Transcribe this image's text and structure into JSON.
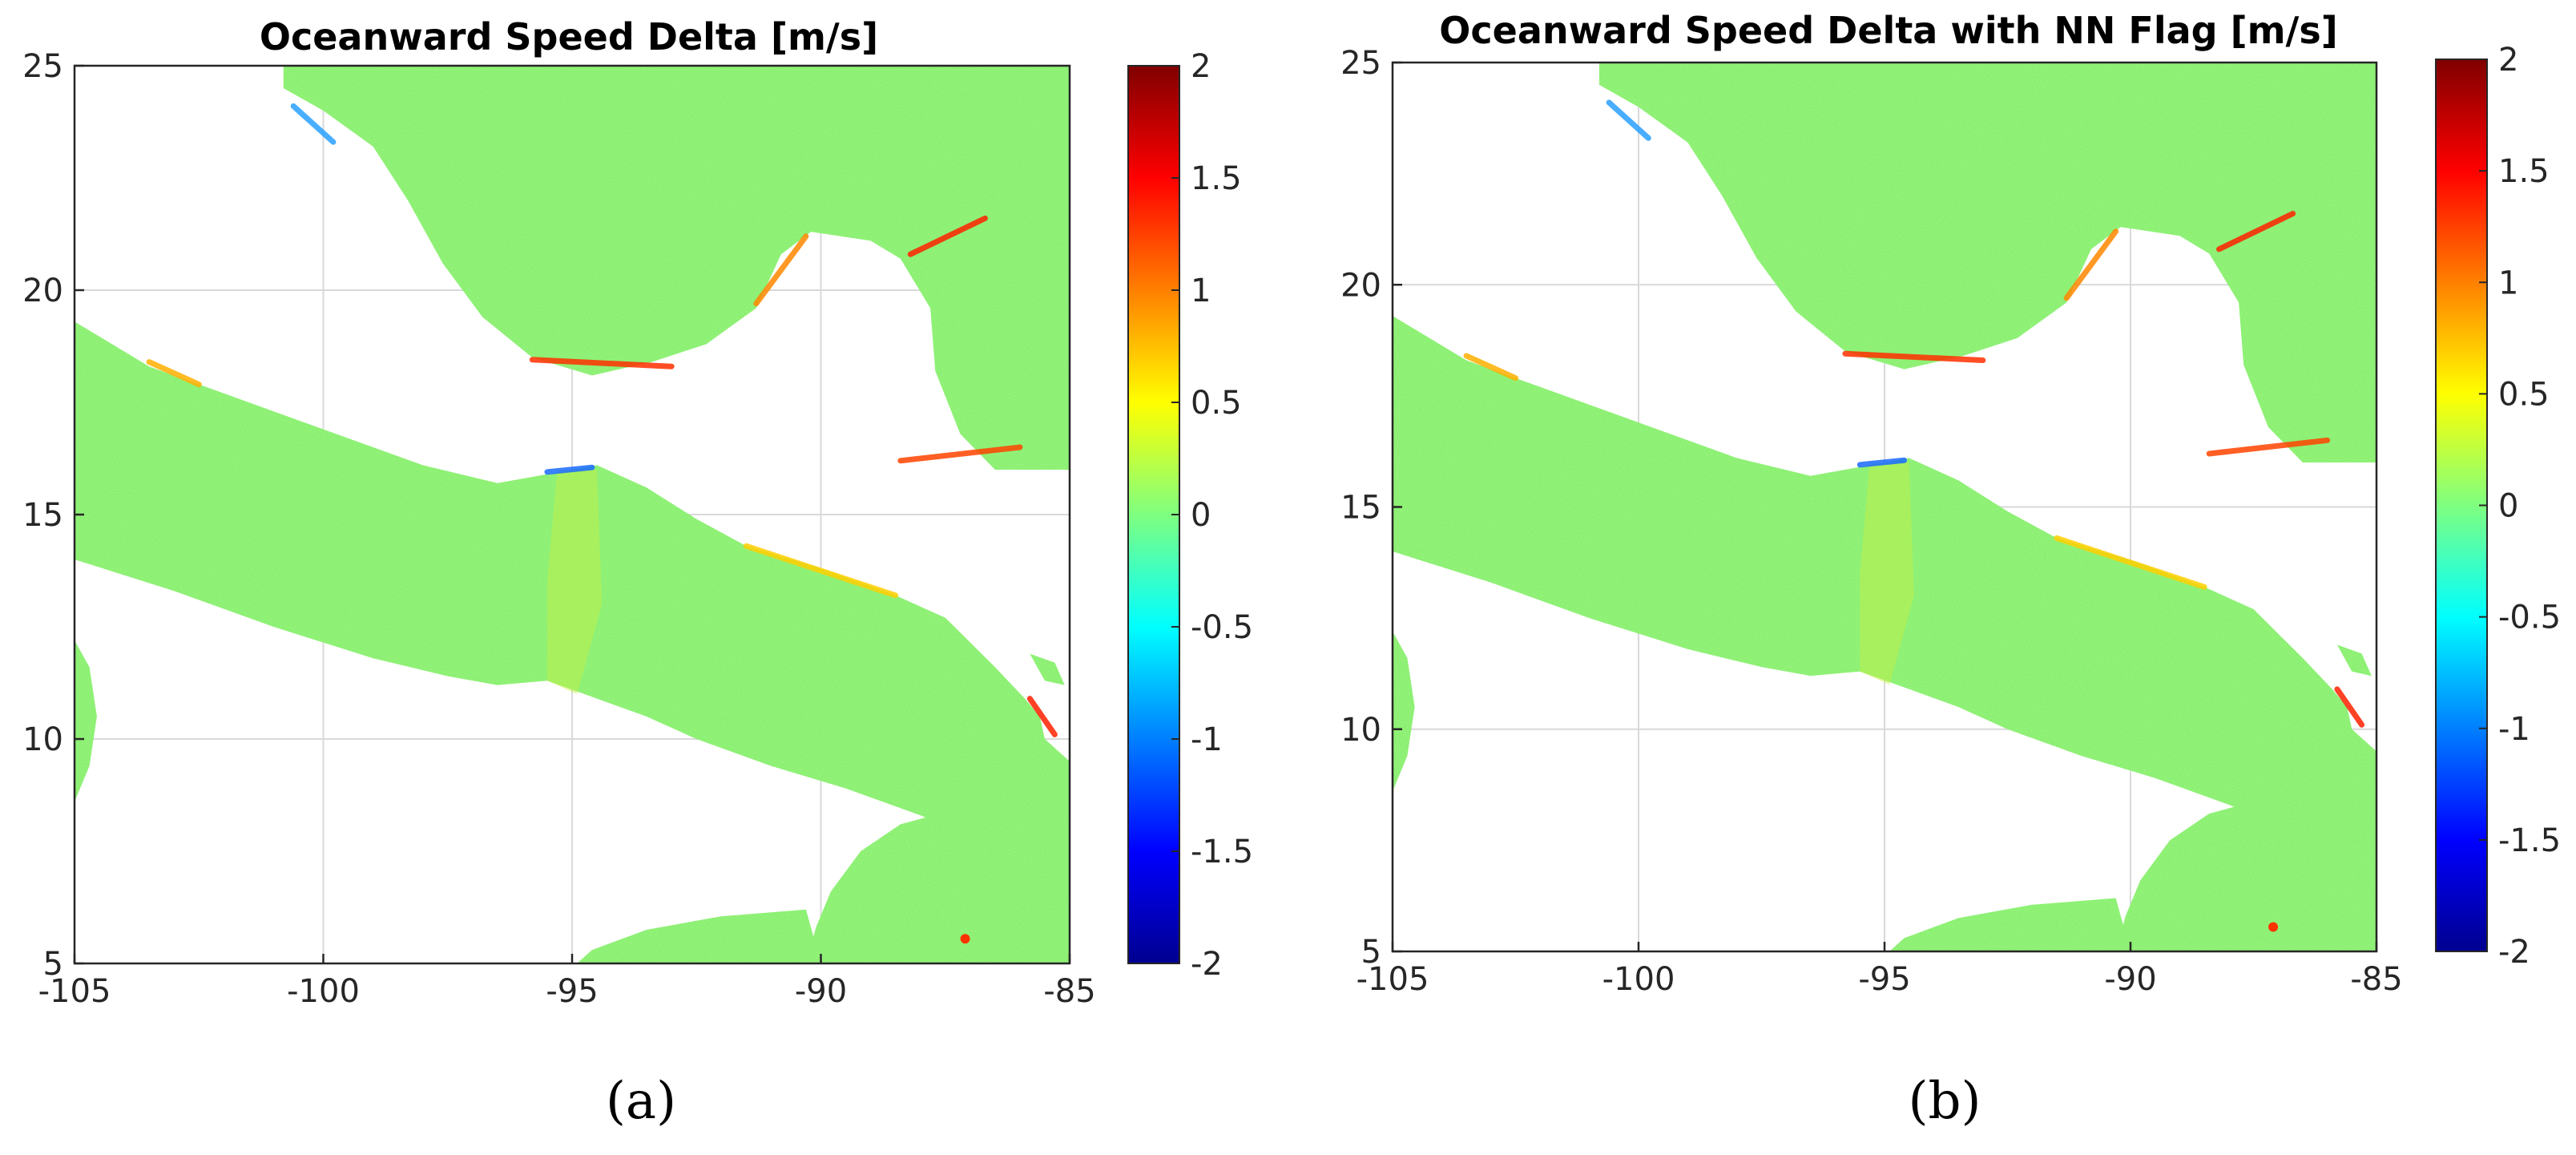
{
  "colors": {
    "land": "#ffffff",
    "ocean": "#86ef6f",
    "ocean_alt": "#a2f05d",
    "axis": "#262626",
    "grid": "#d9d9d9",
    "colormap": "jet"
  },
  "chart_data": [
    {
      "type": "heatmap",
      "title": "Oceanward Speed Delta [m/s]",
      "caption": "(a)",
      "xlabel": "",
      "ylabel": "",
      "xlim": [
        -105,
        -85
      ],
      "ylim": [
        5,
        25
      ],
      "x_ticks": [
        -105,
        -100,
        -95,
        -90,
        -85
      ],
      "x_tick_labels": [
        "-105",
        "-100",
        "-95",
        "-90",
        "-85"
      ],
      "y_ticks": [
        5,
        10,
        15,
        20,
        25
      ],
      "y_tick_labels": [
        "5",
        "10",
        "15",
        "20",
        "25"
      ],
      "grid": true,
      "colorbar": {
        "colormap": "jet",
        "clim": [
          -2,
          2
        ],
        "ticks": [
          2,
          1.5,
          1,
          0.5,
          0,
          -0.5,
          -1,
          -1.5,
          -2
        ],
        "tick_labels": [
          "2",
          "1.5",
          "1",
          "0.5",
          "0",
          "-0.5",
          "-1",
          "-1.5",
          "-2"
        ]
      },
      "typical_value": 0.05
    },
    {
      "type": "heatmap",
      "title": "Oceanward Speed Delta with NN Flag [m/s]",
      "caption": "(b)",
      "xlabel": "",
      "ylabel": "",
      "xlim": [
        -105,
        -85
      ],
      "ylim": [
        5,
        25
      ],
      "x_ticks": [
        -105,
        -100,
        -95,
        -90,
        -85
      ],
      "x_tick_labels": [
        "-105",
        "-100",
        "-95",
        "-90",
        "-85"
      ],
      "y_ticks": [
        5,
        10,
        15,
        20,
        25
      ],
      "y_tick_labels": [
        "5",
        "10",
        "15",
        "20",
        "25"
      ],
      "grid": true,
      "colorbar": {
        "colormap": "jet",
        "clim": [
          -2,
          2
        ],
        "ticks": [
          2,
          1.5,
          1,
          0.5,
          0,
          -0.5,
          -1,
          -1.5,
          -2
        ],
        "tick_labels": [
          "2",
          "1.5",
          "1",
          "0.5",
          "0",
          "-0.5",
          "-1",
          "-1.5",
          "-2"
        ]
      },
      "typical_value": 0.05
    }
  ]
}
